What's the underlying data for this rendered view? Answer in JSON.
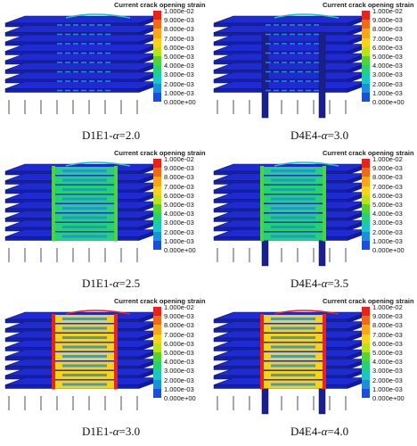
{
  "legend": {
    "title": "Current crack opening strain",
    "ticks": [
      "1.000e-02",
      "9.000e-03",
      "8.000e-03",
      "7.000e-03",
      "6.000e-03",
      "5.000e-03",
      "4.000e-03",
      "3.000e-03",
      "2.000e-03",
      "1.000e-03",
      "0.000e+00"
    ],
    "colors": [
      "#e8231c",
      "#ee6a1b",
      "#f7a51a",
      "#f5d21c",
      "#b8e21c",
      "#4fd43a",
      "#24d07a",
      "#1cc6c0",
      "#1c8fd9",
      "#1c4ed8",
      "#1a1fc4"
    ]
  },
  "colors": {
    "base_blue": "#1f2bd0",
    "edge_blue": "#0e1670",
    "column_blue": "#1a1f8a"
  },
  "panels": [
    {
      "caption_id": "D1E1-",
      "caption_alpha": "α",
      "caption_value": "=2.0",
      "crack_level": 0.15,
      "model": "D1E1"
    },
    {
      "caption_id": "D4E4-",
      "caption_alpha": "α",
      "caption_value": "=3.0",
      "crack_level": 0.2,
      "model": "D4E4"
    },
    {
      "caption_id": "D1E1-",
      "caption_alpha": "α",
      "caption_value": "=2.5",
      "crack_level": 0.65,
      "model": "D1E1"
    },
    {
      "caption_id": "D4E4-",
      "caption_alpha": "α",
      "caption_value": "=3.5",
      "crack_level": 0.7,
      "model": "D4E4"
    },
    {
      "caption_id": "D1E1-",
      "caption_alpha": "α",
      "caption_value": "=3.0",
      "crack_level": 0.95,
      "model": "D1E1"
    },
    {
      "caption_id": "D4E4-",
      "caption_alpha": "α",
      "caption_value": "=4.0",
      "crack_level": 0.95,
      "model": "D4E4"
    }
  ]
}
